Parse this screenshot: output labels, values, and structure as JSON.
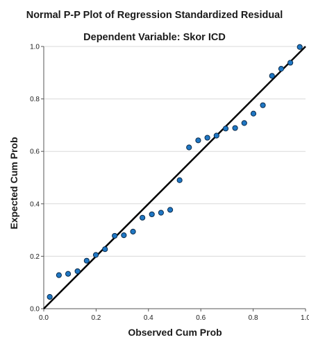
{
  "chart_data": {
    "type": "scatter",
    "title": "Normal P-P Plot of Regression Standardized Residual",
    "subtitle": "Dependent Variable: Skor ICD",
    "xlabel": "Observed Cum Prob",
    "ylabel": "Expected Cum Prob",
    "xlim": [
      0,
      1
    ],
    "ylim": [
      0,
      1
    ],
    "x_ticks": [
      "0.0",
      "0.2",
      "0.4",
      "0.6",
      "0.8",
      "1.0"
    ],
    "y_ticks": [
      "0.0",
      "0.2",
      "0.4",
      "0.6",
      "0.8",
      "1.0"
    ],
    "grid": "horizontal",
    "reference_line": [
      [
        0,
        0
      ],
      [
        1,
        1
      ]
    ],
    "colors": {
      "point_fill": "#1f77c4",
      "point_stroke": "#0a2a4a",
      "line": "#000000",
      "grid": "#d9d9d9",
      "axis": "#555555"
    },
    "points": [
      {
        "x": 0.023,
        "y": 0.045
      },
      {
        "x": 0.058,
        "y": 0.128
      },
      {
        "x": 0.093,
        "y": 0.133
      },
      {
        "x": 0.129,
        "y": 0.143
      },
      {
        "x": 0.164,
        "y": 0.183
      },
      {
        "x": 0.199,
        "y": 0.205
      },
      {
        "x": 0.234,
        "y": 0.227
      },
      {
        "x": 0.271,
        "y": 0.278
      },
      {
        "x": 0.306,
        "y": 0.28
      },
      {
        "x": 0.341,
        "y": 0.294
      },
      {
        "x": 0.377,
        "y": 0.347
      },
      {
        "x": 0.413,
        "y": 0.36
      },
      {
        "x": 0.448,
        "y": 0.366
      },
      {
        "x": 0.483,
        "y": 0.377
      },
      {
        "x": 0.519,
        "y": 0.49
      },
      {
        "x": 0.555,
        "y": 0.615
      },
      {
        "x": 0.59,
        "y": 0.642
      },
      {
        "x": 0.625,
        "y": 0.652
      },
      {
        "x": 0.66,
        "y": 0.66
      },
      {
        "x": 0.695,
        "y": 0.687
      },
      {
        "x": 0.731,
        "y": 0.689
      },
      {
        "x": 0.766,
        "y": 0.708
      },
      {
        "x": 0.801,
        "y": 0.744
      },
      {
        "x": 0.837,
        "y": 0.776
      },
      {
        "x": 0.872,
        "y": 0.888
      },
      {
        "x": 0.907,
        "y": 0.915
      },
      {
        "x": 0.942,
        "y": 0.938
      },
      {
        "x": 0.978,
        "y": 0.998
      }
    ]
  }
}
